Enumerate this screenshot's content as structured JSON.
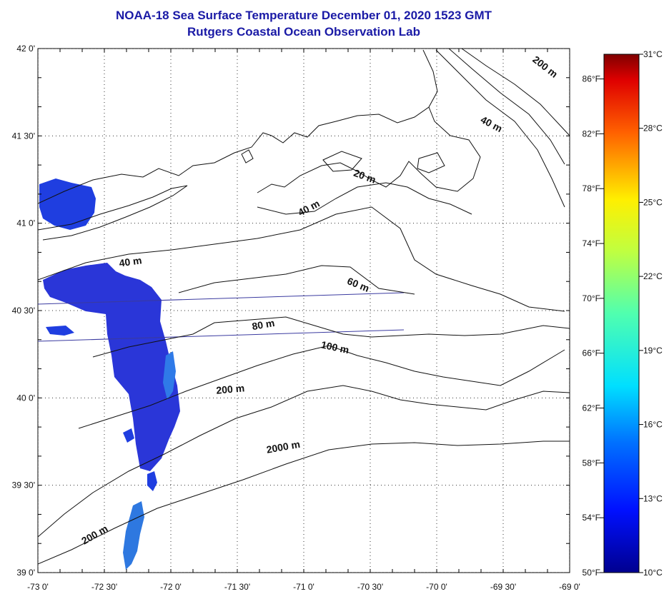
{
  "title": {
    "line1": "NOAA-18 Sea Surface Temperature December 01, 2020 1523 GMT",
    "line2": "Rutgers Coastal Ocean Observation Lab"
  },
  "map": {
    "lat_range": [
      39.0,
      42.0
    ],
    "lon_range": [
      -73.0,
      -69.0
    ],
    "lat_ticks": [
      {
        "value": 42.0,
        "label": "42 0'"
      },
      {
        "value": 41.5,
        "label": "41 30'"
      },
      {
        "value": 41.0,
        "label": "41 0'"
      },
      {
        "value": 40.5,
        "label": "40 30'"
      },
      {
        "value": 40.0,
        "label": "40 0'"
      },
      {
        "value": 39.5,
        "label": "39 30'"
      },
      {
        "value": 39.0,
        "label": "39 0'"
      }
    ],
    "lon_ticks": [
      {
        "value": -73.0,
        "label": "-73 0'"
      },
      {
        "value": -72.5,
        "label": "-72 30'"
      },
      {
        "value": -72.0,
        "label": "-72 0'"
      },
      {
        "value": -71.5,
        "label": "-71 30'"
      },
      {
        "value": -71.0,
        "label": "-71 0'"
      },
      {
        "value": -70.5,
        "label": "-70 30'"
      },
      {
        "value": -70.0,
        "label": "-70 0'"
      },
      {
        "value": -69.5,
        "label": "-69 30'"
      },
      {
        "value": -69.0,
        "label": "-69 0'"
      }
    ],
    "contour_labels": [
      {
        "text": "200 m",
        "lon": -69.2,
        "lat": 41.88,
        "angle": 38
      },
      {
        "text": "40 m",
        "lon": -69.6,
        "lat": 41.55,
        "angle": 28
      },
      {
        "text": "20 m",
        "lon": -70.55,
        "lat": 41.25,
        "angle": 20
      },
      {
        "text": "40 m",
        "lon": -70.95,
        "lat": 41.07,
        "angle": -28
      },
      {
        "text": "40 m",
        "lon": -72.3,
        "lat": 40.76,
        "angle": -8
      },
      {
        "text": "60 m",
        "lon": -70.6,
        "lat": 40.63,
        "angle": 22
      },
      {
        "text": "80 m",
        "lon": -71.3,
        "lat": 40.4,
        "angle": -10
      },
      {
        "text": "100 m",
        "lon": -70.77,
        "lat": 40.27,
        "angle": 12
      },
      {
        "text": "200 m",
        "lon": -71.55,
        "lat": 40.03,
        "angle": -5
      },
      {
        "text": "2000 m",
        "lon": -71.15,
        "lat": 39.7,
        "angle": -10
      },
      {
        "text": "200 m",
        "lon": -72.56,
        "lat": 39.2,
        "angle": -30
      }
    ],
    "sst_color": "#1f3ee0",
    "land_line_color": "#111111"
  },
  "colorbar": {
    "celsius_range": [
      10,
      31
    ],
    "celsius_ticks": [
      {
        "value": 31,
        "label": "31°C"
      },
      {
        "value": 28,
        "label": "28°C"
      },
      {
        "value": 25,
        "label": "25°C"
      },
      {
        "value": 22,
        "label": "22°C"
      },
      {
        "value": 19,
        "label": "19°C"
      },
      {
        "value": 16,
        "label": "16°C"
      },
      {
        "value": 13,
        "label": "13°C"
      },
      {
        "value": 10,
        "label": "10°C"
      }
    ],
    "fahrenheit_ticks": [
      {
        "value": 86,
        "label": "86°F"
      },
      {
        "value": 82,
        "label": "82°F"
      },
      {
        "value": 78,
        "label": "78°F"
      },
      {
        "value": 74,
        "label": "74°F"
      },
      {
        "value": 70,
        "label": "70°F"
      },
      {
        "value": 66,
        "label": "66°F"
      },
      {
        "value": 62,
        "label": "62°F"
      },
      {
        "value": 58,
        "label": "58°F"
      },
      {
        "value": 54,
        "label": "54°F"
      },
      {
        "value": 50,
        "label": "50°F"
      }
    ]
  }
}
